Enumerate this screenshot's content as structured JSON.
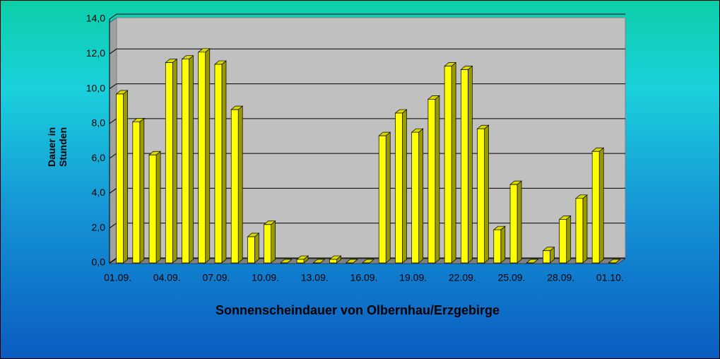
{
  "chart_data": {
    "type": "bar3d",
    "title": "Sonnenscheindauer von Olbernhau/Erzgebirge",
    "ylabel": [
      "Dauer in",
      "Stunden"
    ],
    "categories": [
      "01.09.",
      null,
      null,
      "04.09.",
      null,
      null,
      "07.09.",
      null,
      null,
      "10.09.",
      null,
      null,
      "13.09.",
      null,
      null,
      "16.09.",
      null,
      null,
      "19.09.",
      null,
      null,
      "22.09.",
      null,
      null,
      "25.09.",
      null,
      null,
      "28.09.",
      null,
      null,
      "01.10."
    ],
    "values": [
      9.7,
      8.1,
      6.2,
      11.5,
      11.7,
      12.1,
      11.4,
      8.8,
      1.5,
      2.2,
      0.0,
      0.2,
      0.0,
      0.2,
      0.0,
      0.0,
      7.3,
      8.6,
      7.5,
      9.4,
      11.3,
      11.1,
      7.7,
      1.9,
      4.5,
      0.0,
      0.7,
      2.5,
      3.7,
      6.4,
      0.0
    ],
    "color": "#ffff00",
    "ylim": [
      0,
      14
    ],
    "yticks": [
      {
        "value": 0,
        "label": "0,0"
      },
      {
        "value": 2,
        "label": "2,0"
      },
      {
        "value": 4,
        "label": "4,0"
      },
      {
        "value": 6,
        "label": "6,0"
      },
      {
        "value": 8,
        "label": "8,0"
      },
      {
        "value": 10,
        "label": "10,0"
      },
      {
        "value": 12,
        "label": "12,0"
      },
      {
        "value": 14,
        "label": "14,0"
      }
    ],
    "grid": true
  }
}
